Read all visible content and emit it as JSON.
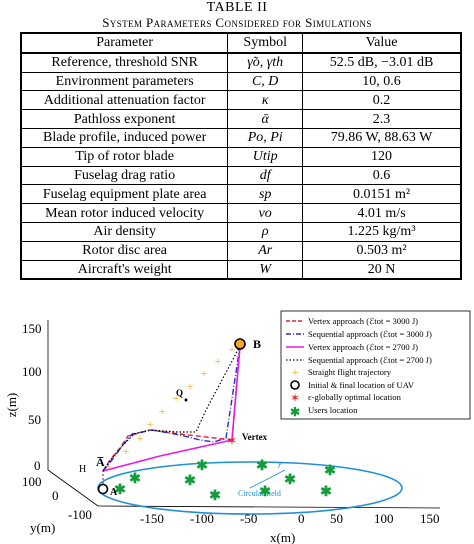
{
  "table": {
    "number": "TABLE II",
    "caption": "System Parameters Considered for Simulations",
    "headers": [
      "Parameter",
      "Symbol",
      "Value"
    ],
    "rows": [
      {
        "parameter": "Reference, threshold SNR",
        "symbol": "γ̃o, γth",
        "value": "52.5 dB, −3.01 dB"
      },
      {
        "parameter": "Environment parameters",
        "symbol": "C, D",
        "value": "10, 0.6"
      },
      {
        "parameter": "Additional attenuation factor",
        "symbol": "κ",
        "value": "0.2"
      },
      {
        "parameter": "Pathloss exponent",
        "symbol": "ᾱ",
        "value": "2.3"
      },
      {
        "parameter": "Blade profile, induced power",
        "symbol": "Po, Pi",
        "value": "79.86 W, 88.63 W"
      },
      {
        "parameter": "Tip of rotor blade",
        "symbol": "Utip",
        "value": "120"
      },
      {
        "parameter": "Fuselag drag ratio",
        "symbol": "df",
        "value": "0.6"
      },
      {
        "parameter": "Fuselag equipment plate area",
        "symbol": "sp",
        "value": "0.0151 m²"
      },
      {
        "parameter": "Mean rotor induced velocity",
        "symbol": "vo",
        "value": "4.01 m/s"
      },
      {
        "parameter": "Air density",
        "symbol": "ρ",
        "value": "1.225 kg/m³"
      },
      {
        "parameter": "Rotor disc area",
        "symbol": "Ar",
        "value": "0.503 m²"
      },
      {
        "parameter": "Aircraft's weight",
        "symbol": "W",
        "value": "20 N"
      }
    ]
  },
  "figure": {
    "axes": {
      "zlabel": "z(m)",
      "ylabel": "y(m)",
      "xlabel": "x(m)",
      "z_ticks": [
        "150",
        "100",
        "50",
        "0"
      ],
      "y_ticks": [
        "100",
        "0",
        "-100"
      ],
      "x_ticks": [
        "-150",
        "-100",
        "-50",
        "0",
        "50",
        "100",
        "150"
      ]
    },
    "point_labels": {
      "B": "B",
      "A_bar": "A̅",
      "A": "A",
      "H": "H",
      "Q": "Q",
      "vertex": "Vertex",
      "circular_field": "Circular field",
      "r": "r"
    },
    "legend": [
      {
        "label": "Vertex approach (ℰtot = 3000 J)",
        "color": "#e8202a",
        "style": "dashed"
      },
      {
        "label": "Sequential approach (ℰtot = 3000 J)",
        "color": "#2a2fbf",
        "style": "dashdot"
      },
      {
        "label": "Vertex approach (ℰtot = 2700 J)",
        "color": "#e619e6",
        "style": "solid"
      },
      {
        "label": "Sequential approach (ℰtot = 2700 J)",
        "color": "#000000",
        "style": "dotted"
      },
      {
        "label": "Straight flight trajectory",
        "color": "#f5a623",
        "style": "plus"
      },
      {
        "label": "Initial & final location of UAV",
        "color": "#000000",
        "style": "circle"
      },
      {
        "label": "ε-globally optimal location",
        "color": "#e8202a",
        "style": "star"
      },
      {
        "label": "Users location",
        "color": "#129d3a",
        "style": "asterisk"
      }
    ]
  }
}
